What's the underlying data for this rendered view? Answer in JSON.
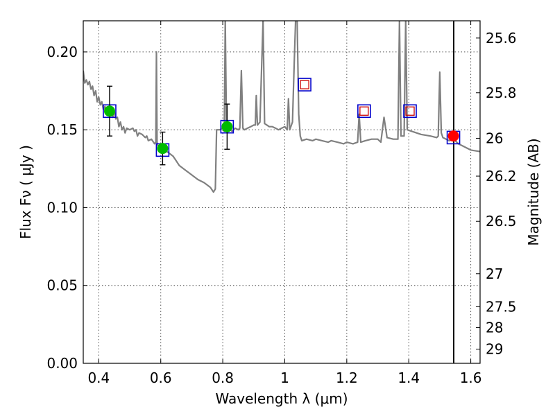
{
  "chart_data": {
    "type": "scatter",
    "xlabel": "Wavelength  λ (μm)",
    "ylabel": "Flux  Fν  ( μJy )",
    "y2label": "Magnitude (AB)",
    "xlim": [
      0.35,
      1.63
    ],
    "ylim": [
      0.0,
      0.22
    ],
    "grid": true,
    "x_ticks": [
      "0.4",
      "0.6",
      "0.8",
      "1",
      "1.2",
      "1.4",
      "1.6"
    ],
    "y_ticks": [
      "0.00",
      "0.05",
      "0.10",
      "0.15",
      "0.20"
    ],
    "y2_ticks": [
      {
        "label": "25.6",
        "mag": 25.6
      },
      {
        "label": "25.8",
        "mag": 25.8
      },
      {
        "label": "26",
        "mag": 26.0
      },
      {
        "label": "26.2",
        "mag": 26.2
      },
      {
        "label": "26.5",
        "mag": 26.5
      },
      {
        "label": "27",
        "mag": 27.0
      },
      {
        "label": "27.5",
        "mag": 27.5
      },
      {
        "label": "28",
        "mag": 28.0
      },
      {
        "label": "29",
        "mag": 29.0
      }
    ],
    "vertical_line_x": 1.545,
    "template_spectrum": [
      [
        0.35,
        0.188
      ],
      [
        0.355,
        0.18
      ],
      [
        0.36,
        0.182
      ],
      [
        0.365,
        0.179
      ],
      [
        0.37,
        0.181
      ],
      [
        0.375,
        0.176
      ],
      [
        0.38,
        0.178
      ],
      [
        0.385,
        0.172
      ],
      [
        0.39,
        0.175
      ],
      [
        0.395,
        0.168
      ],
      [
        0.4,
        0.171
      ],
      [
        0.405,
        0.166
      ],
      [
        0.41,
        0.168
      ],
      [
        0.415,
        0.163
      ],
      [
        0.42,
        0.165
      ],
      [
        0.425,
        0.161
      ],
      [
        0.43,
        0.163
      ],
      [
        0.435,
        0.159
      ],
      [
        0.44,
        0.161
      ],
      [
        0.445,
        0.158
      ],
      [
        0.45,
        0.162
      ],
      [
        0.455,
        0.157
      ],
      [
        0.46,
        0.158
      ],
      [
        0.465,
        0.152
      ],
      [
        0.47,
        0.155
      ],
      [
        0.475,
        0.15
      ],
      [
        0.48,
        0.152
      ],
      [
        0.485,
        0.148
      ],
      [
        0.49,
        0.151
      ],
      [
        0.5,
        0.15
      ],
      [
        0.51,
        0.151
      ],
      [
        0.515,
        0.149
      ],
      [
        0.52,
        0.15
      ],
      [
        0.525,
        0.146
      ],
      [
        0.53,
        0.148
      ],
      [
        0.54,
        0.147
      ],
      [
        0.55,
        0.145
      ],
      [
        0.555,
        0.146
      ],
      [
        0.56,
        0.143
      ],
      [
        0.57,
        0.144
      ],
      [
        0.58,
        0.141
      ],
      [
        0.584,
        0.142
      ],
      [
        0.586,
        0.2
      ],
      [
        0.588,
        0.142
      ],
      [
        0.59,
        0.14
      ],
      [
        0.6,
        0.138
      ],
      [
        0.62,
        0.136
      ],
      [
        0.64,
        0.133
      ],
      [
        0.65,
        0.13
      ],
      [
        0.66,
        0.127
      ],
      [
        0.68,
        0.124
      ],
      [
        0.7,
        0.121
      ],
      [
        0.72,
        0.118
      ],
      [
        0.74,
        0.116
      ],
      [
        0.76,
        0.113
      ],
      [
        0.77,
        0.11
      ],
      [
        0.776,
        0.112
      ],
      [
        0.78,
        0.15
      ],
      [
        0.79,
        0.15
      ],
      [
        0.8,
        0.151
      ],
      [
        0.805,
        0.149
      ],
      [
        0.808,
        0.2205
      ],
      [
        0.812,
        0.15
      ],
      [
        0.82,
        0.151
      ],
      [
        0.83,
        0.149
      ],
      [
        0.84,
        0.151
      ],
      [
        0.85,
        0.15
      ],
      [
        0.855,
        0.151
      ],
      [
        0.86,
        0.188
      ],
      [
        0.865,
        0.151
      ],
      [
        0.87,
        0.15
      ],
      [
        0.88,
        0.151
      ],
      [
        0.89,
        0.152
      ],
      [
        0.9,
        0.153
      ],
      [
        0.905,
        0.153
      ],
      [
        0.908,
        0.172
      ],
      [
        0.912,
        0.153
      ],
      [
        0.92,
        0.155
      ],
      [
        0.93,
        0.2205
      ],
      [
        0.935,
        0.154
      ],
      [
        0.95,
        0.152
      ],
      [
        0.96,
        0.152
      ],
      [
        0.97,
        0.151
      ],
      [
        0.98,
        0.15
      ],
      [
        0.99,
        0.151
      ],
      [
        1.0,
        0.152
      ],
      [
        1.008,
        0.15
      ],
      [
        1.012,
        0.17
      ],
      [
        1.016,
        0.15
      ],
      [
        1.025,
        0.155
      ],
      [
        1.03,
        0.19
      ],
      [
        1.035,
        0.2205
      ],
      [
        1.04,
        0.2205
      ],
      [
        1.045,
        0.16
      ],
      [
        1.05,
        0.146
      ],
      [
        1.055,
        0.143
      ],
      [
        1.07,
        0.144
      ],
      [
        1.09,
        0.143
      ],
      [
        1.1,
        0.144
      ],
      [
        1.12,
        0.143
      ],
      [
        1.14,
        0.142
      ],
      [
        1.15,
        0.143
      ],
      [
        1.17,
        0.142
      ],
      [
        1.19,
        0.141
      ],
      [
        1.2,
        0.142
      ],
      [
        1.22,
        0.141
      ],
      [
        1.235,
        0.142
      ],
      [
        1.24,
        0.16
      ],
      [
        1.245,
        0.142
      ],
      [
        1.26,
        0.143
      ],
      [
        1.28,
        0.144
      ],
      [
        1.3,
        0.144
      ],
      [
        1.31,
        0.142
      ],
      [
        1.32,
        0.158
      ],
      [
        1.33,
        0.145
      ],
      [
        1.35,
        0.144
      ],
      [
        1.365,
        0.144
      ],
      [
        1.37,
        0.2205
      ],
      [
        1.375,
        0.146
      ],
      [
        1.385,
        0.146
      ],
      [
        1.39,
        0.2205
      ],
      [
        1.395,
        0.15
      ],
      [
        1.41,
        0.149
      ],
      [
        1.44,
        0.147
      ],
      [
        1.47,
        0.146
      ],
      [
        1.49,
        0.145
      ],
      [
        1.495,
        0.146
      ],
      [
        1.5,
        0.187
      ],
      [
        1.505,
        0.148
      ],
      [
        1.51,
        0.145
      ],
      [
        1.53,
        0.143
      ],
      [
        1.545,
        0.144
      ],
      [
        1.56,
        0.141
      ],
      [
        1.58,
        0.139
      ],
      [
        1.6,
        0.137
      ],
      [
        1.63,
        0.136
      ]
    ],
    "model_fluxes": [
      {
        "x": 0.435,
        "y": 0.162
      },
      {
        "x": 0.606,
        "y": 0.137
      },
      {
        "x": 0.814,
        "y": 0.152
      },
      {
        "x": 1.064,
        "y": 0.179
      },
      {
        "x": 1.256,
        "y": 0.162
      },
      {
        "x": 1.404,
        "y": 0.162
      },
      {
        "x": 1.544,
        "y": 0.145
      }
    ],
    "detections": [
      {
        "x": 0.435,
        "y": 0.162,
        "err": 0.016
      },
      {
        "x": 0.606,
        "y": 0.138,
        "err": 0.0105
      },
      {
        "x": 0.814,
        "y": 0.152,
        "err": 0.0145
      }
    ],
    "detection_color": "#00bb00",
    "special_point": {
      "x": 1.544,
      "y": 0.146,
      "color": "#ff0000"
    },
    "upper_limits": [
      {
        "x": 1.064,
        "y": 0.179
      },
      {
        "x": 1.256,
        "y": 0.162
      },
      {
        "x": 1.404,
        "y": 0.162
      }
    ],
    "colors": {
      "template": "#808080",
      "model_box": "#0000cc",
      "upper_limit_box": "#cc0000",
      "error_bar": "#000000"
    }
  }
}
